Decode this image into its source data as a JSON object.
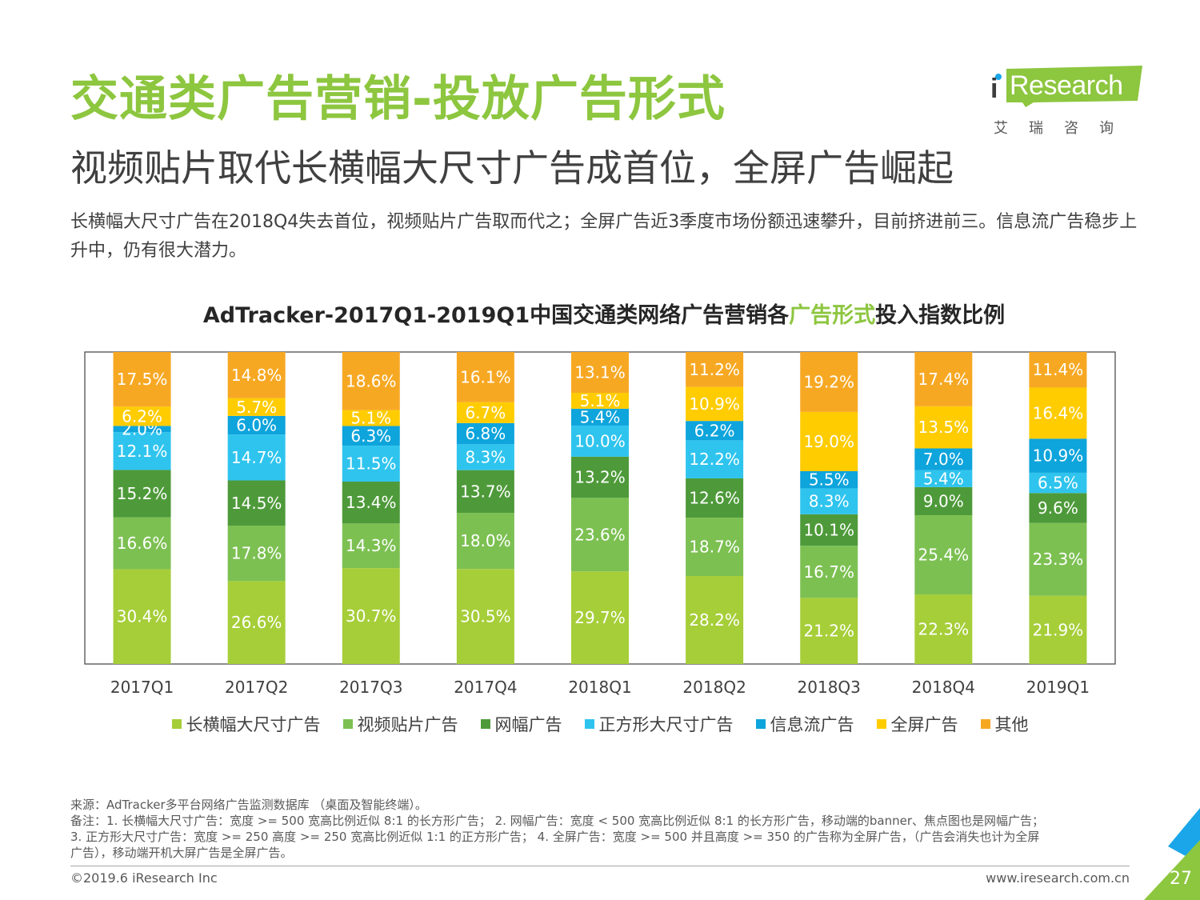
{
  "header": {
    "title": "交通类广告营销-投放广告形式",
    "subtitle": "视频贴片取代长横幅大尺寸广告成首位，全屏广告崛起",
    "description": "长横幅大尺寸广告在2018Q4失去首位，视频贴片广告取而代之；全屏广告近3季度市场份额迅速攀升，目前挤进前三。信息流广告稳步上升中，仍有很大潜力。"
  },
  "logo": {
    "text": "Research",
    "cn": "艾瑞咨询"
  },
  "chart_title": {
    "prefix": "AdTracker-2017Q1-2019Q1中国交通类网络广告营销各",
    "highlight": "广告形式",
    "suffix": "投入指数比例"
  },
  "chart_data": {
    "type": "bar",
    "stacked": true,
    "normalized": true,
    "categories": [
      "2017Q1",
      "2017Q2",
      "2017Q3",
      "2017Q4",
      "2018Q1",
      "2018Q2",
      "2018Q3",
      "2018Q4",
      "2019Q1"
    ],
    "series": [
      {
        "name": "长横幅大尺寸广告",
        "color": "#a6ce39",
        "values": [
          30.4,
          26.6,
          30.7,
          30.5,
          29.7,
          28.2,
          21.2,
          22.3,
          21.9
        ]
      },
      {
        "name": "视频贴片广告",
        "color": "#7cc052",
        "values": [
          16.6,
          17.8,
          14.3,
          18.0,
          23.6,
          18.7,
          16.7,
          25.4,
          23.3
        ]
      },
      {
        "name": "网幅广告",
        "color": "#4e9a3a",
        "values": [
          15.2,
          14.5,
          13.4,
          13.7,
          13.2,
          12.6,
          10.1,
          9.0,
          9.6
        ]
      },
      {
        "name": "正方形大尺寸广告",
        "color": "#2ec4ee",
        "values": [
          12.1,
          14.7,
          11.5,
          8.3,
          10.0,
          12.2,
          8.3,
          5.4,
          6.5
        ]
      },
      {
        "name": "信息流广告",
        "color": "#0ea4dc",
        "values": [
          2.0,
          6.0,
          6.3,
          6.8,
          5.4,
          6.2,
          5.5,
          7.0,
          10.9
        ]
      },
      {
        "name": "全屏广告",
        "color": "#ffcc00",
        "values": [
          6.2,
          5.7,
          5.1,
          6.7,
          5.1,
          10.9,
          19.0,
          13.5,
          16.4
        ]
      },
      {
        "name": "其他",
        "color": "#f7a823",
        "values": [
          17.5,
          14.8,
          18.6,
          16.1,
          13.1,
          11.2,
          19.2,
          17.4,
          11.4
        ]
      }
    ],
    "value_suffix": "%",
    "legend_position": "bottom",
    "grid": false
  },
  "footnote": {
    "source": "来源：AdTracker多平台网络广告监测数据库 （桌面及智能终端）。",
    "note1": "备注：1. 长横幅大尺寸广告：宽度 >= 500 宽高比例近似 8:1 的长方形广告； 2. 网幅广告：宽度 < 500 宽高比例近似 8:1 的长方形广告，移动端的banner、焦点图也是网幅广告；",
    "note2": "3. 正方形大尺寸广告：宽度 >= 250 高度 >= 250 宽高比例近似 1:1 的正方形广告； 4. 全屏广告：宽度 >= 500 并且高度 >= 350 的广告称为全屏广告，（广告会消失也计为全屏",
    "note3": "广告），移动端开机大屏广告是全屏广告。"
  },
  "footer": {
    "copyright": "©2019.6 iResearch Inc",
    "site": "www.iresearch.com.cn",
    "page": "27"
  },
  "colors": {
    "title": "#8dc63f",
    "logo_bg": "#8dc63f",
    "corner_green": "#8dc63f",
    "corner_blue": "#1aa6e8"
  }
}
